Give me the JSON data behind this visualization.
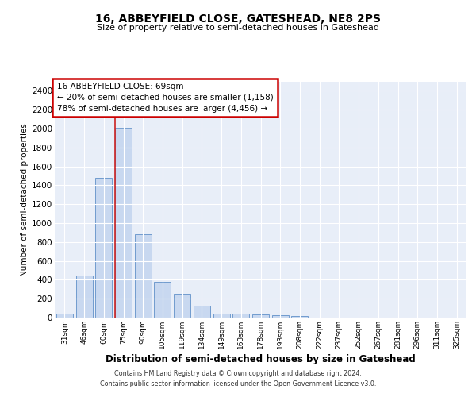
{
  "title_line1": "16, ABBEYFIELD CLOSE, GATESHEAD, NE8 2PS",
  "title_line2": "Size of property relative to semi-detached houses in Gateshead",
  "xlabel": "Distribution of semi-detached houses by size in Gateshead",
  "ylabel": "Number of semi-detached properties",
  "categories": [
    "31sqm",
    "46sqm",
    "60sqm",
    "75sqm",
    "90sqm",
    "105sqm",
    "119sqm",
    "134sqm",
    "149sqm",
    "163sqm",
    "178sqm",
    "193sqm",
    "208sqm",
    "222sqm",
    "237sqm",
    "252sqm",
    "267sqm",
    "281sqm",
    "296sqm",
    "311sqm",
    "325sqm"
  ],
  "values": [
    45,
    445,
    1480,
    2005,
    880,
    375,
    255,
    130,
    40,
    40,
    30,
    25,
    20,
    0,
    0,
    0,
    0,
    0,
    0,
    0,
    0
  ],
  "bar_color": "#c8d8f0",
  "bar_edge_color": "#6090c8",
  "annotation_title": "16 ABBEYFIELD CLOSE: 69sqm",
  "annotation_line2": "← 20% of semi-detached houses are smaller (1,158)",
  "annotation_line3": "78% of semi-detached houses are larger (4,456) →",
  "annotation_box_color": "#ffffff",
  "annotation_box_edge": "#cc0000",
  "red_line_color": "#cc2222",
  "ylim": [
    0,
    2500
  ],
  "yticks": [
    0,
    200,
    400,
    600,
    800,
    1000,
    1200,
    1400,
    1600,
    1800,
    2000,
    2200,
    2400
  ],
  "footer_line1": "Contains HM Land Registry data © Crown copyright and database right 2024.",
  "footer_line2": "Contains public sector information licensed under the Open Government Licence v3.0.",
  "plot_bg_color": "#e8eef8",
  "grid_color": "#ffffff",
  "fig_bg_color": "#ffffff"
}
